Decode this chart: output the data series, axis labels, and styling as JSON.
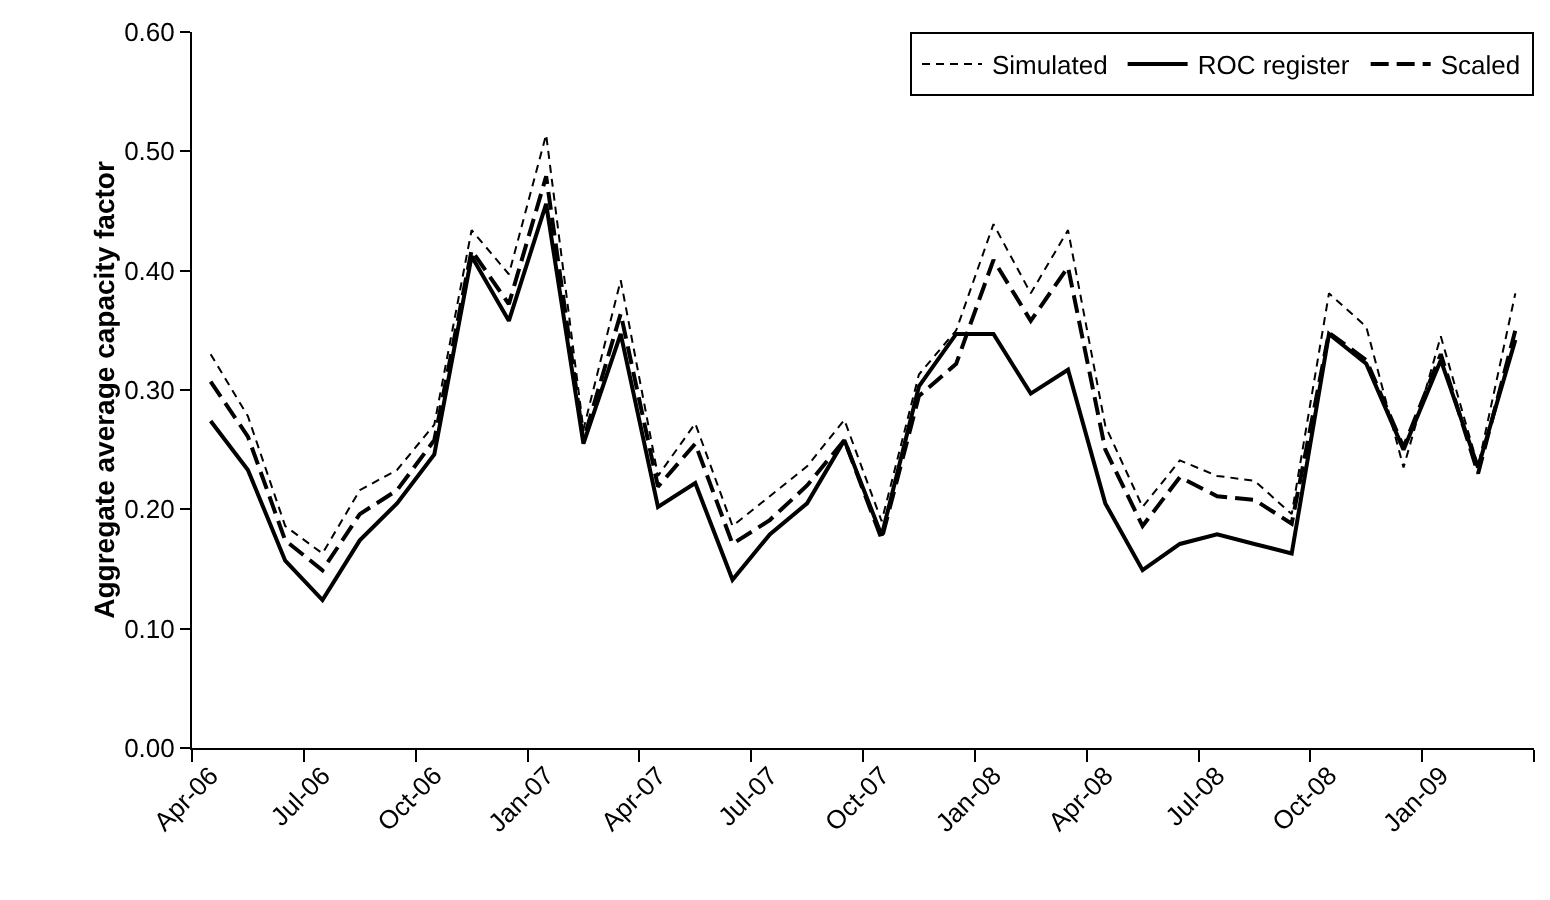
{
  "chart_data": {
    "type": "line",
    "ylabel": "Aggregate average capacity factor",
    "categories": [
      "Apr-06",
      null,
      null,
      "Jul-06",
      null,
      null,
      "Oct-06",
      null,
      null,
      "Jan-07",
      null,
      null,
      "Apr-07",
      null,
      null,
      "Jul-07",
      null,
      null,
      "Oct-07",
      null,
      null,
      "Jan-08",
      null,
      null,
      "Apr-08",
      null,
      null,
      "Jul-08",
      null,
      null,
      "Oct-08",
      null,
      null,
      "Jan-09",
      null,
      null
    ],
    "series": [
      {
        "name": "Simulated",
        "color": "#000000",
        "line_style": "dotted",
        "values": [
          0.33,
          0.278,
          0.186,
          0.163,
          0.216,
          0.233,
          0.271,
          0.434,
          0.397,
          0.514,
          0.267,
          0.392,
          0.228,
          0.272,
          0.186,
          0.211,
          0.236,
          0.275,
          0.19,
          0.313,
          0.35,
          0.439,
          0.381,
          0.434,
          0.27,
          0.202,
          0.241,
          0.228,
          0.224,
          0.196,
          0.381,
          0.353,
          0.235,
          0.345,
          0.236,
          0.381
        ]
      },
      {
        "name": "ROC register",
        "color": "#000000",
        "line_style": "solid",
        "values": [
          0.274,
          0.233,
          0.157,
          0.124,
          0.174,
          0.205,
          0.246,
          0.412,
          0.358,
          0.456,
          0.255,
          0.347,
          0.202,
          0.222,
          0.141,
          0.179,
          0.205,
          0.258,
          0.178,
          0.303,
          0.347,
          0.347,
          0.297,
          0.317,
          0.205,
          0.149,
          0.171,
          0.179,
          0.171,
          0.163,
          0.347,
          0.322,
          0.25,
          0.325,
          0.235,
          0.342
        ]
      },
      {
        "name": "Scaled",
        "color": "#000000",
        "line_style": "dashed",
        "values": [
          0.307,
          0.261,
          0.174,
          0.149,
          0.196,
          0.216,
          0.258,
          0.417,
          0.372,
          0.479,
          0.258,
          0.364,
          0.219,
          0.255,
          0.171,
          0.191,
          0.22,
          0.258,
          0.175,
          0.295,
          0.322,
          0.409,
          0.358,
          0.403,
          0.25,
          0.186,
          0.227,
          0.211,
          0.208,
          0.188,
          0.348,
          0.325,
          0.252,
          0.33,
          0.23,
          0.35
        ]
      }
    ],
    "ylim": [
      0,
      0.6
    ],
    "yticks": [
      {
        "value": 0,
        "label": "0.00"
      },
      {
        "value": 0.1,
        "label": "0.10"
      },
      {
        "value": 0.2,
        "label": "0.20"
      },
      {
        "value": 0.3,
        "label": "0.30"
      },
      {
        "value": 0.4,
        "label": "0.40"
      },
      {
        "value": 0.5,
        "label": "0.50"
      },
      {
        "value": 0.6,
        "label": "0.60"
      }
    ],
    "grid": false,
    "legend": "top right",
    "marker": "none"
  }
}
